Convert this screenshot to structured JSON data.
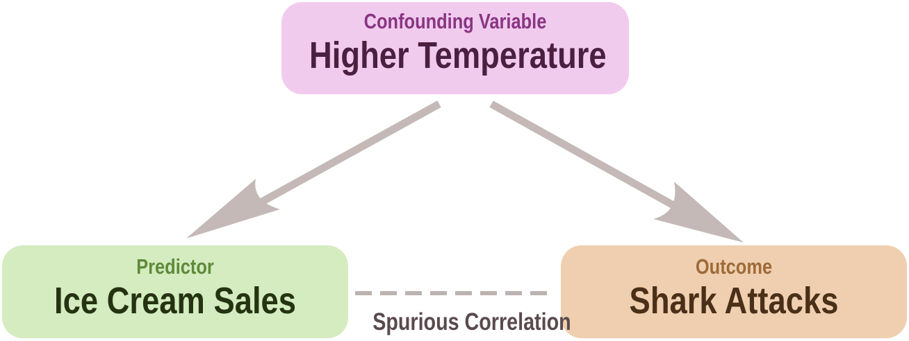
{
  "diagram": {
    "confounder": {
      "kicker": "Confounding Variable",
      "label": "Higher Temperature"
    },
    "predictor": {
      "kicker": "Predictor",
      "label": "Ice Cream Sales"
    },
    "outcome": {
      "kicker": "Outcome",
      "label": "Shark Attacks"
    },
    "spurious_link": {
      "label": "Spurious Correlation"
    },
    "colors": {
      "confounder_fill": "#f1cbee",
      "predictor_fill": "#d4ecbf",
      "outcome_fill": "#efcfb0",
      "arrow": "#c4b9b7",
      "dashed_link": "#bcb3b0"
    }
  }
}
